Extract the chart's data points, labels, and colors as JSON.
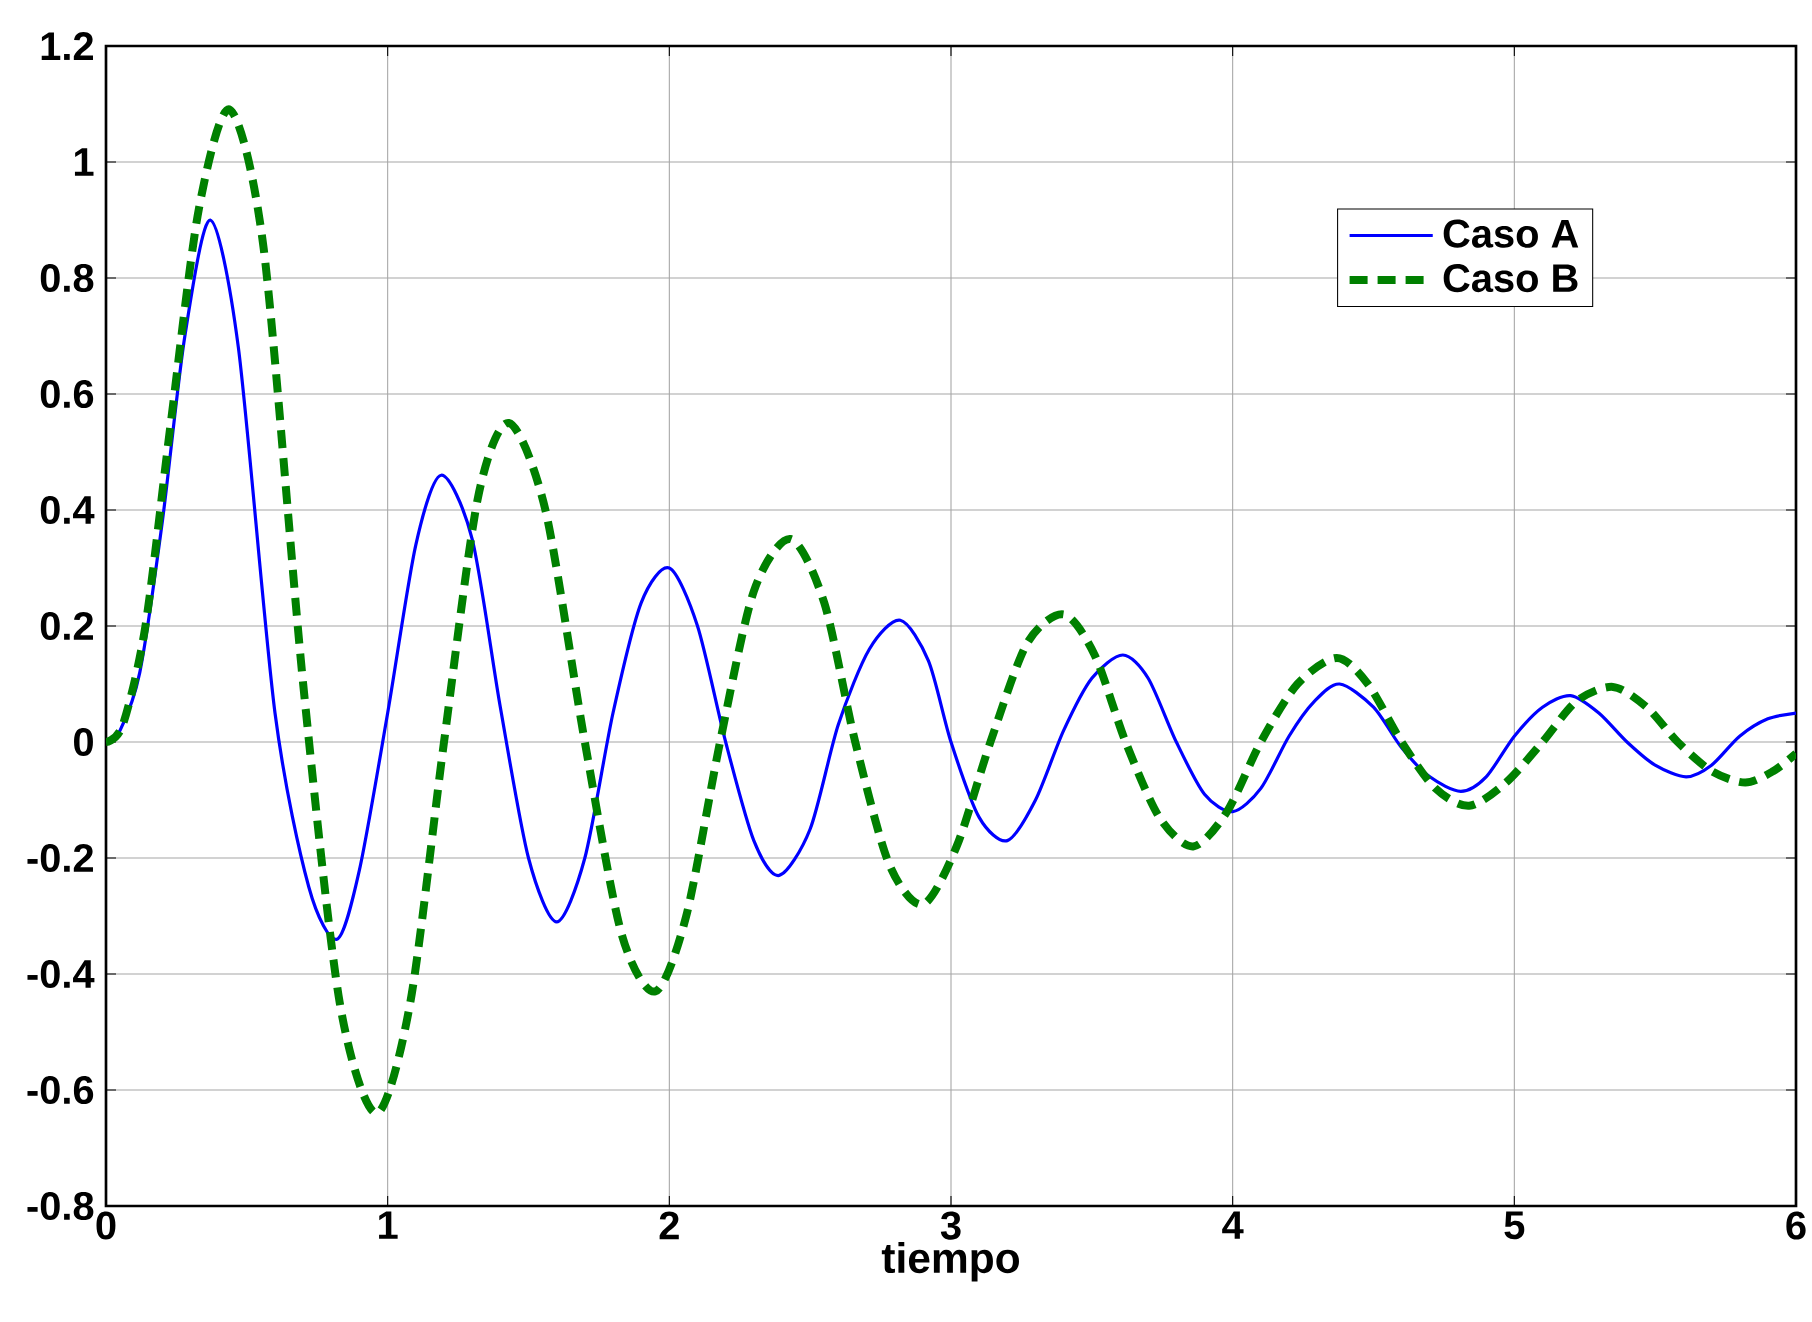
{
  "chart_data": {
    "type": "line",
    "xlabel": "tiempo",
    "xlim": [
      0,
      6
    ],
    "ylim": [
      -0.8,
      1.2
    ],
    "xticks": [
      0,
      1,
      2,
      3,
      4,
      5,
      6
    ],
    "yticks": [
      -0.8,
      -0.6,
      -0.4,
      -0.2,
      0,
      0.2,
      0.4,
      0.6,
      0.8,
      1,
      1.2
    ],
    "grid": true,
    "legend": "top right",
    "series": [
      {
        "name": "Caso A",
        "color": "#0000ff",
        "line_style": "solid",
        "x": [
          0,
          0.05,
          0.12,
          0.2,
          0.28,
          0.37,
          0.47,
          0.6,
          0.72,
          0.82,
          0.9,
          1.0,
          1.1,
          1.19,
          1.3,
          1.4,
          1.5,
          1.6,
          1.7,
          1.8,
          1.9,
          2.0,
          2.1,
          2.2,
          2.3,
          2.39,
          2.5,
          2.6,
          2.71,
          2.82,
          2.92,
          3.0,
          3.1,
          3.2,
          3.3,
          3.4,
          3.5,
          3.61,
          3.7,
          3.8,
          3.9,
          4.0,
          4.1,
          4.2,
          4.29,
          4.38,
          4.5,
          4.6,
          4.7,
          4.81,
          4.9,
          5.0,
          5.1,
          5.2,
          5.3,
          5.4,
          5.5,
          5.61,
          5.7,
          5.8,
          5.9,
          6.0
        ],
        "values": [
          0,
          0.02,
          0.12,
          0.38,
          0.7,
          0.9,
          0.68,
          0.05,
          -0.25,
          -0.34,
          -0.22,
          0.05,
          0.34,
          0.46,
          0.35,
          0.06,
          -0.2,
          -0.31,
          -0.2,
          0.05,
          0.24,
          0.3,
          0.2,
          0.0,
          -0.17,
          -0.23,
          -0.15,
          0.03,
          0.16,
          0.21,
          0.14,
          0.0,
          -0.13,
          -0.17,
          -0.1,
          0.02,
          0.11,
          0.15,
          0.11,
          0.0,
          -0.09,
          -0.12,
          -0.08,
          0.01,
          0.07,
          0.1,
          0.06,
          -0.01,
          -0.06,
          -0.085,
          -0.06,
          0.01,
          0.06,
          0.08,
          0.05,
          0.0,
          -0.04,
          -0.06,
          -0.04,
          0.01,
          0.04,
          0.05
        ]
      },
      {
        "name": "Caso B",
        "color": "#008000",
        "line_style": "dashed",
        "x": [
          0,
          0.06,
          0.14,
          0.23,
          0.33,
          0.44,
          0.56,
          0.7,
          0.83,
          0.96,
          1.08,
          1.2,
          1.32,
          1.43,
          1.56,
          1.7,
          1.83,
          1.95,
          2.06,
          2.18,
          2.3,
          2.43,
          2.55,
          2.66,
          2.78,
          2.9,
          3.02,
          3.14,
          3.27,
          3.4,
          3.51,
          3.62,
          3.74,
          3.86,
          3.98,
          4.1,
          4.23,
          4.37,
          4.48,
          4.6,
          4.72,
          4.84,
          4.97,
          5.1,
          5.22,
          5.35,
          5.47,
          5.58,
          5.7,
          5.82,
          5.92,
          6.0
        ],
        "values": [
          0,
          0.03,
          0.2,
          0.55,
          0.92,
          1.09,
          0.85,
          0.1,
          -0.45,
          -0.64,
          -0.45,
          0.0,
          0.42,
          0.55,
          0.4,
          0.0,
          -0.33,
          -0.43,
          -0.3,
          0.0,
          0.26,
          0.35,
          0.24,
          0.0,
          -0.21,
          -0.28,
          -0.18,
          0.0,
          0.17,
          0.22,
          0.15,
          0.0,
          -0.13,
          -0.18,
          -0.12,
          0.0,
          0.1,
          0.145,
          0.1,
          0.0,
          -0.08,
          -0.11,
          -0.07,
          0.0,
          0.07,
          0.095,
          0.06,
          0.0,
          -0.05,
          -0.07,
          -0.05,
          -0.02
        ]
      }
    ]
  }
}
